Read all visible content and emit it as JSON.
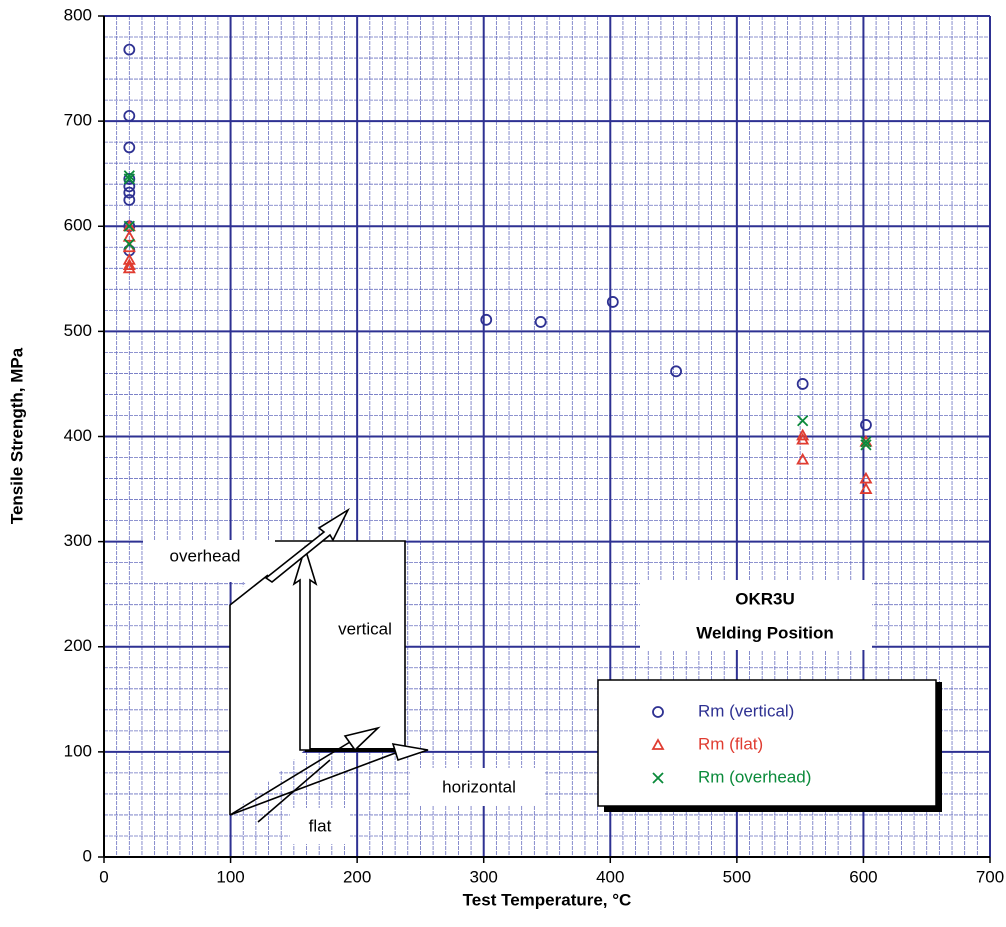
{
  "chart_data": {
    "type": "scatter",
    "xlabel": "Test Temperature, °C",
    "ylabel": "Tensile Strength, MPa",
    "xlim": [
      0,
      700
    ],
    "ylim": [
      0,
      800
    ],
    "xticks": [
      0,
      100,
      200,
      300,
      400,
      500,
      600,
      700
    ],
    "yticks": [
      0,
      100,
      200,
      300,
      400,
      500,
      600,
      700,
      800
    ],
    "grid": true,
    "minor_grid": {
      "x": 10,
      "y": 5
    },
    "annotations": [
      "OKR3U",
      "Welding Position",
      "overhead",
      "vertical",
      "horizontal",
      "flat"
    ],
    "series": [
      {
        "name": "Rm (vertical)",
        "color": "#2e3192",
        "marker": "circle",
        "x": [
          20,
          20,
          20,
          20,
          20,
          20,
          20,
          20,
          20,
          302,
          345,
          402,
          452,
          552,
          602
        ],
        "y": [
          768,
          705,
          675,
          645,
          638,
          632,
          625,
          600,
          577,
          511,
          509,
          528,
          462,
          450,
          411
        ]
      },
      {
        "name": "Rm (flat)",
        "color": "#e03c31",
        "marker": "triangle",
        "x": [
          20,
          20,
          20,
          20,
          20,
          20,
          552,
          552,
          552,
          602,
          602,
          602
        ],
        "y": [
          600,
          590,
          580,
          568,
          563,
          560,
          401,
          397,
          378,
          395,
          360,
          350
        ]
      },
      {
        "name": "Rm (overhead)",
        "color": "#0a8a3a",
        "marker": "cross",
        "x": [
          20,
          20,
          20,
          20,
          552,
          602,
          602
        ],
        "y": [
          648,
          645,
          600,
          583,
          415,
          395,
          392
        ]
      }
    ]
  }
}
